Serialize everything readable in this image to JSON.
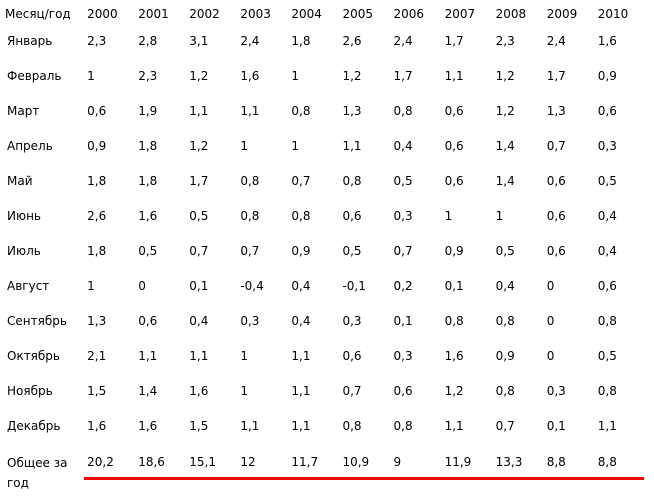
{
  "header": {
    "label": "Месяц/год",
    "years": [
      "2000",
      "2001",
      "2002",
      "2003",
      "2004",
      "2005",
      "2006",
      "2007",
      "2008",
      "2009",
      "2010"
    ]
  },
  "rows": [
    {
      "month": "Январь",
      "values": [
        "2,3",
        "2,8",
        "3,1",
        "2,4",
        "1,8",
        "2,6",
        "2,4",
        "1,7",
        "2,3",
        "2,4",
        "1,6"
      ]
    },
    {
      "month": "Февраль",
      "values": [
        "1",
        "2,3",
        "1,2",
        "1,6",
        "1",
        "1,2",
        "1,7",
        "1,1",
        "1,2",
        "1,7",
        "0,9"
      ]
    },
    {
      "month": "Март",
      "values": [
        "0,6",
        "1,9",
        "1,1",
        "1,1",
        "0,8",
        "1,3",
        "0,8",
        "0,6",
        "1,2",
        "1,3",
        "0,6"
      ]
    },
    {
      "month": "Апрель",
      "values": [
        "0,9",
        "1,8",
        "1,2",
        "1",
        "1",
        "1,1",
        "0,4",
        "0,6",
        "1,4",
        "0,7",
        "0,3"
      ]
    },
    {
      "month": "Май",
      "values": [
        "1,8",
        "1,8",
        "1,7",
        "0,8",
        "0,7",
        "0,8",
        "0,5",
        "0,6",
        "1,4",
        "0,6",
        "0,5"
      ]
    },
    {
      "month": "Июнь",
      "values": [
        "2,6",
        "1,6",
        "0,5",
        "0,8",
        "0,8",
        "0,6",
        "0,3",
        "1",
        "1",
        "0,6",
        "0,4"
      ]
    },
    {
      "month": "Июль",
      "values": [
        "1,8",
        "0,5",
        "0,7",
        "0,7",
        "0,9",
        "0,5",
        "0,7",
        "0,9",
        "0,5",
        "0,6",
        "0,4"
      ]
    },
    {
      "month": "Август",
      "values": [
        "1",
        "0",
        "0,1",
        "-0,4",
        "0,4",
        "-0,1",
        "0,2",
        "0,1",
        "0,4",
        "0",
        "0,6"
      ]
    },
    {
      "month": "Сентябрь",
      "values": [
        "1,3",
        "0,6",
        "0,4",
        "0,3",
        "0,4",
        "0,3",
        "0,1",
        "0,8",
        "0,8",
        "0",
        "0,8"
      ]
    },
    {
      "month": "Октябрь",
      "values": [
        "2,1",
        "1,1",
        "1,1",
        "1",
        "1,1",
        "0,6",
        "0,3",
        "1,6",
        "0,9",
        "0",
        "0,5"
      ]
    },
    {
      "month": "Ноябрь",
      "values": [
        "1,5",
        "1,4",
        "1,6",
        "1",
        "1,1",
        "0,7",
        "0,6",
        "1,2",
        "0,8",
        "0,3",
        "0,8"
      ]
    },
    {
      "month": "Декабрь",
      "values": [
        "1,6",
        "1,6",
        "1,5",
        "1,1",
        "1,1",
        "0,8",
        "0,8",
        "1,1",
        "0,7",
        "0,1",
        "1,1"
      ]
    }
  ],
  "total": {
    "label": "Общее за год",
    "values": [
      "20,2",
      "18,6",
      "15,1",
      "12",
      "11,7",
      "10,9",
      "9",
      "11,9",
      "13,3",
      "8,8",
      "8,8"
    ]
  },
  "colors": {
    "underline": "#ff0000",
    "text": "#000000",
    "background": "#ffffff"
  }
}
